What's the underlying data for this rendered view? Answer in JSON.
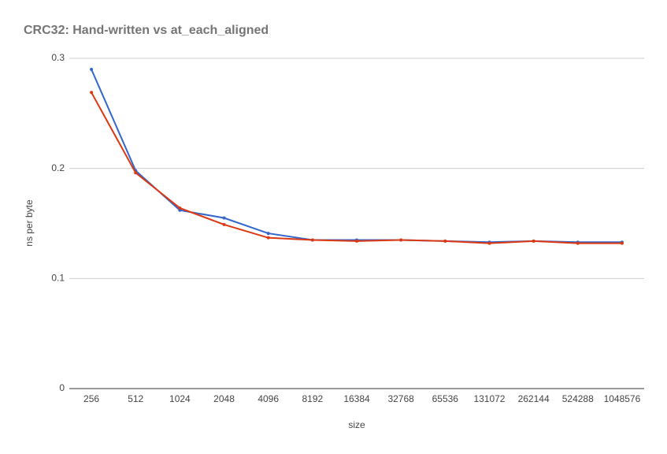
{
  "chart_data": {
    "type": "line",
    "title": "CRC32: Hand-written vs at_each_aligned",
    "x_label": "size",
    "y_label": "ns per byte",
    "categories": [
      "256",
      "512",
      "1024",
      "2048",
      "4096",
      "8192",
      "16384",
      "32768",
      "65536",
      "131072",
      "262144",
      "524288",
      "1048576"
    ],
    "series": [
      {
        "color": "#3366cc",
        "values": [
          0.29,
          0.198,
          0.162,
          0.155,
          0.141,
          0.135,
          0.135,
          0.135,
          0.134,
          0.133,
          0.134,
          0.133,
          0.133
        ]
      },
      {
        "color": "#dc3912",
        "values": [
          0.269,
          0.196,
          0.164,
          0.149,
          0.137,
          0.135,
          0.134,
          0.135,
          0.134,
          0.132,
          0.134,
          0.132,
          0.132
        ]
      }
    ],
    "ylim": [
      0,
      0.3
    ],
    "yticks": [
      0,
      0.1,
      0.2,
      0.3
    ],
    "grid": true
  }
}
